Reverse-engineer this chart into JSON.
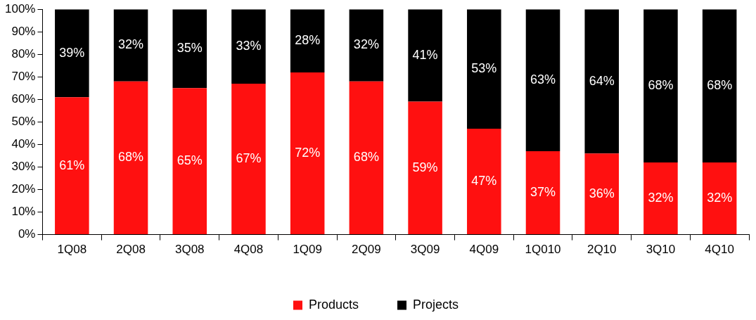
{
  "chart_data": {
    "type": "bar",
    "stacked": true,
    "categories": [
      "1Q08",
      "2Q08",
      "3Q08",
      "4Q08",
      "1Q09",
      "2Q09",
      "3Q09",
      "4Q09",
      "1Q010",
      "2Q10",
      "3Q10",
      "4Q10"
    ],
    "series": [
      {
        "name": "Products",
        "color": "#ff1010",
        "values": [
          61,
          68,
          65,
          67,
          72,
          68,
          59,
          47,
          37,
          36,
          32,
          32
        ],
        "value_labels": [
          "61%",
          "68%",
          "65%",
          "67%",
          "72%",
          "68%",
          "59%",
          "47%",
          "37%",
          "36%",
          "32%",
          "32%"
        ]
      },
      {
        "name": "Projects",
        "color": "#000000",
        "values": [
          39,
          32,
          35,
          33,
          28,
          32,
          41,
          53,
          63,
          64,
          68,
          68
        ],
        "value_labels": [
          "39%",
          "32%",
          "35%",
          "33%",
          "28%",
          "32%",
          "41%",
          "53%",
          "63%",
          "64%",
          "68%",
          "68%"
        ]
      }
    ],
    "ylim": [
      0,
      100
    ],
    "yticks": [
      {
        "value": 0,
        "label": "0%"
      },
      {
        "value": 10,
        "label": "10%"
      },
      {
        "value": 20,
        "label": "20%"
      },
      {
        "value": 30,
        "label": "30%"
      },
      {
        "value": 40,
        "label": "40%"
      },
      {
        "value": 50,
        "label": "50%"
      },
      {
        "value": 60,
        "label": "60%"
      },
      {
        "value": 70,
        "label": "70%"
      },
      {
        "value": 80,
        "label": "80%"
      },
      {
        "value": 90,
        "label": "90%"
      },
      {
        "value": 100,
        "label": "100%"
      }
    ],
    "grid": false,
    "legend": "bottom"
  }
}
